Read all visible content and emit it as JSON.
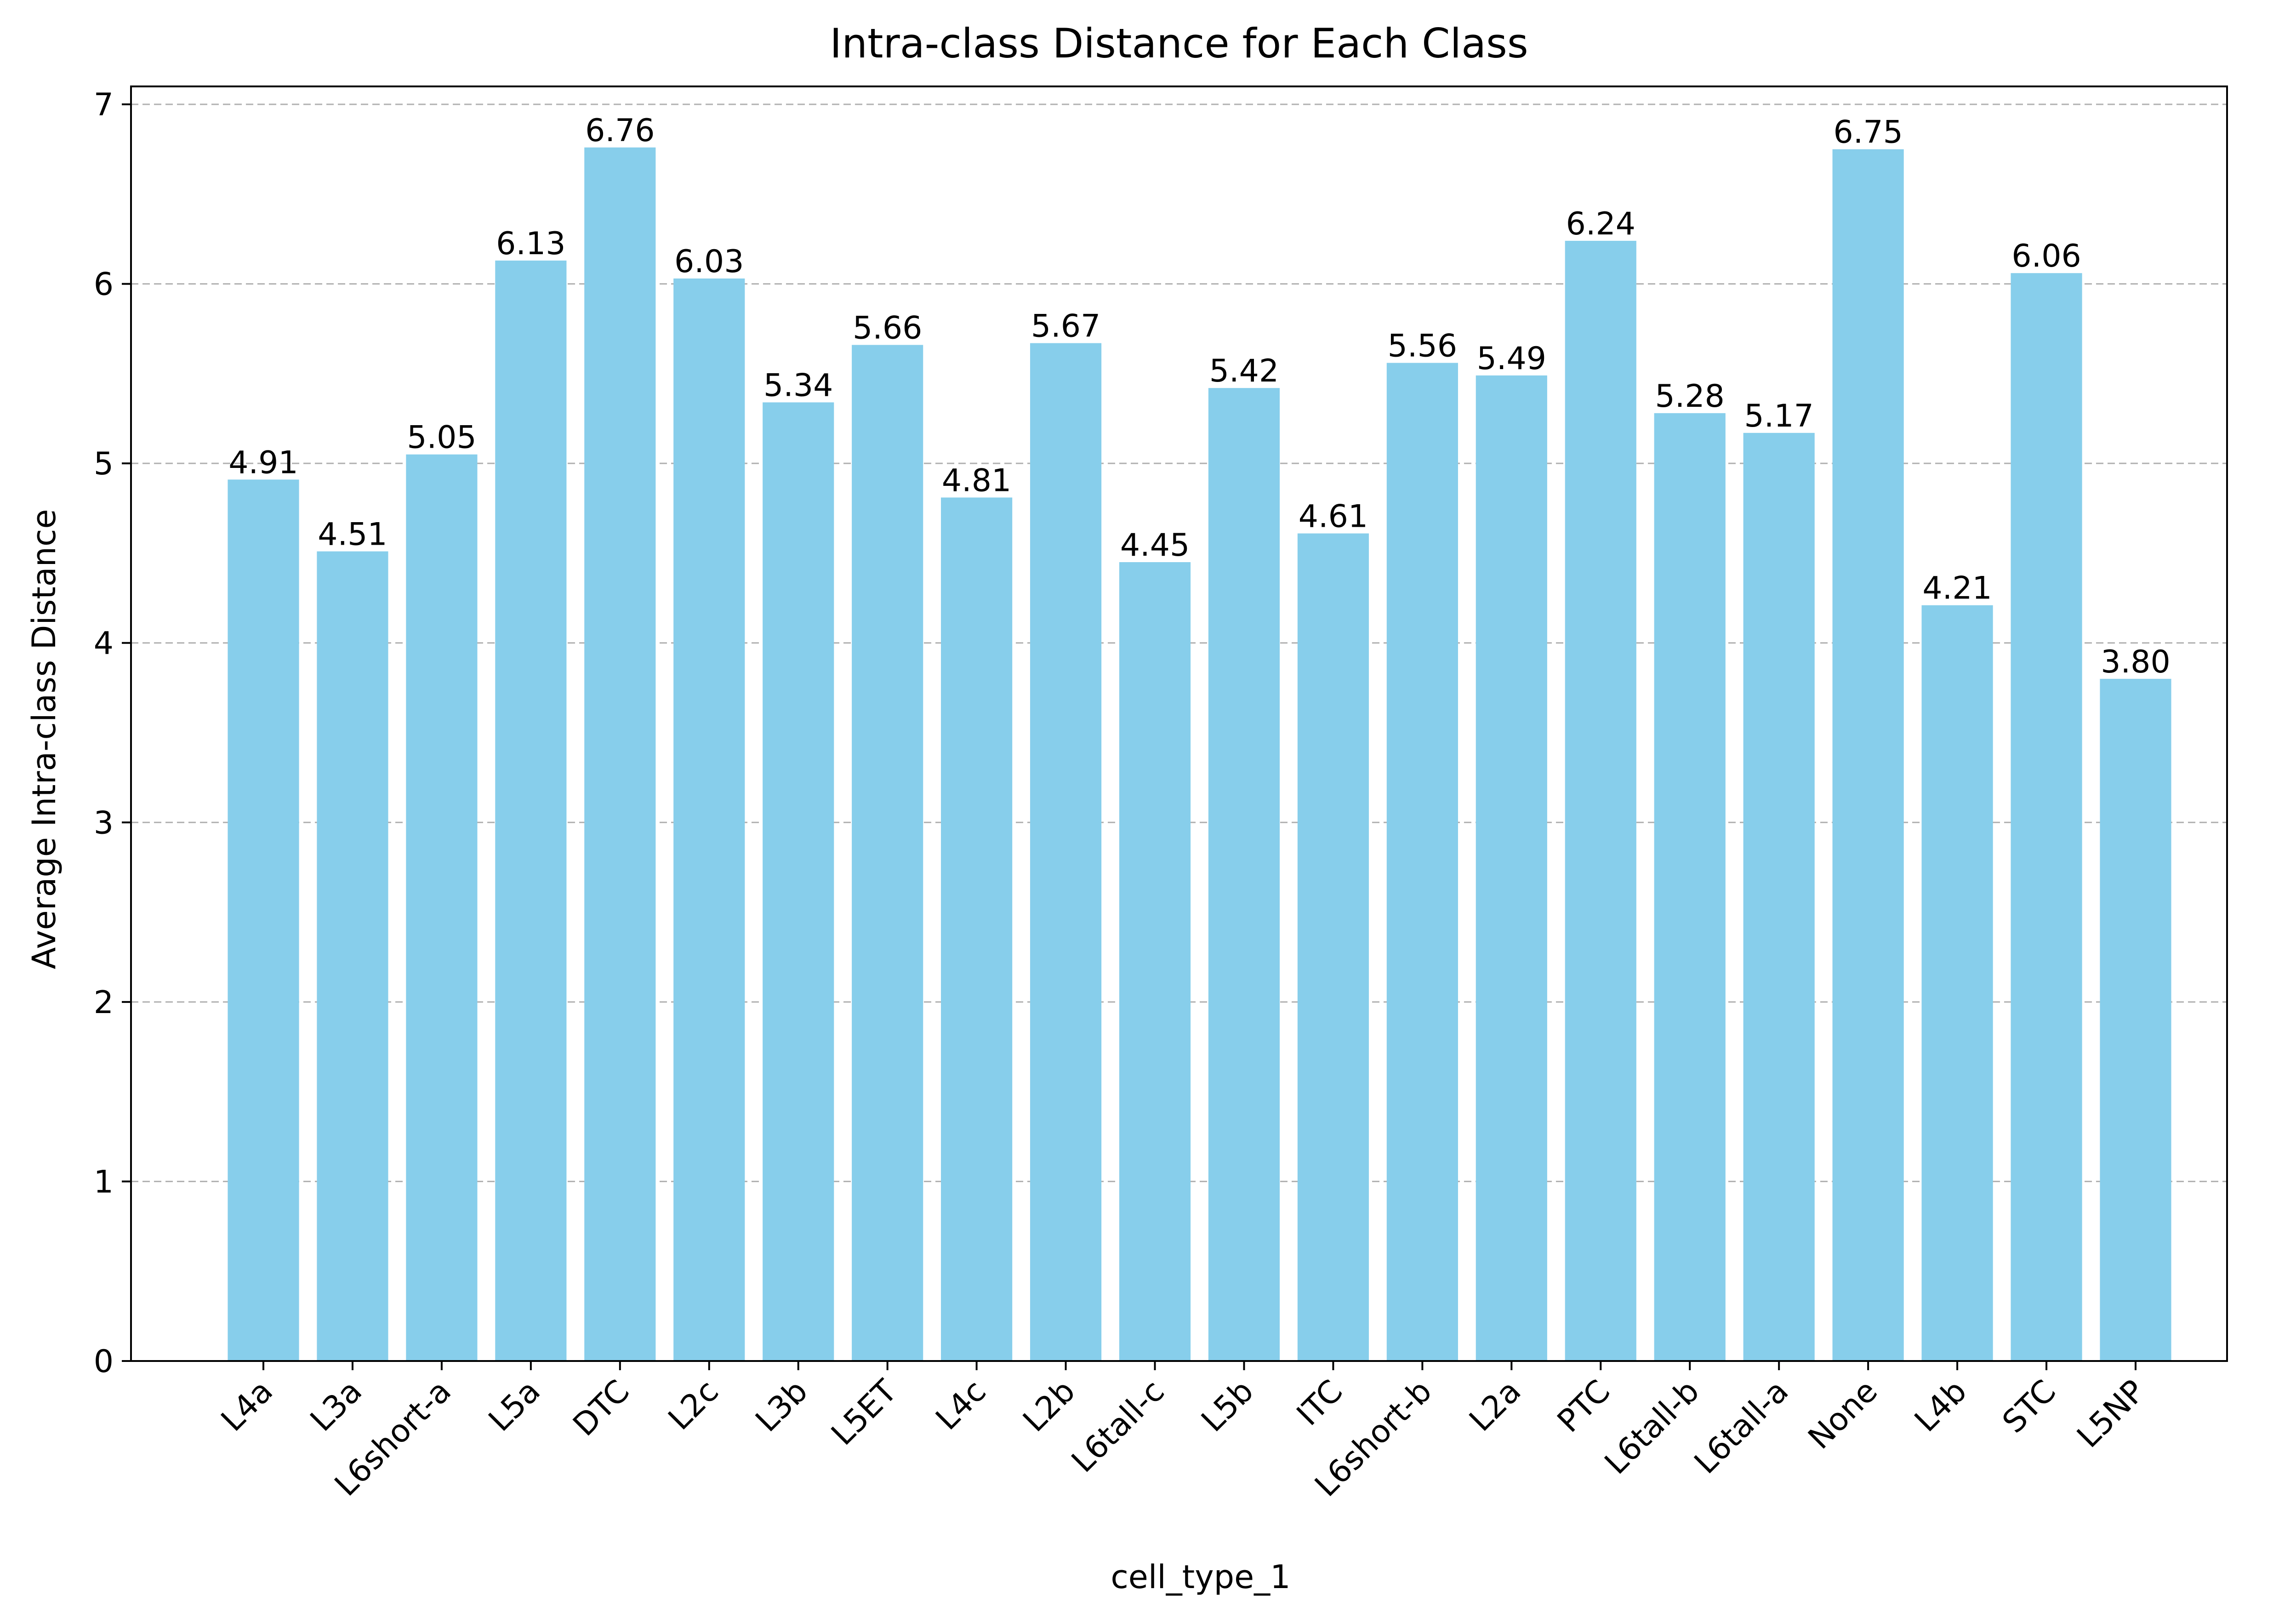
{
  "chart_data": {
    "type": "bar",
    "title": "Intra-class Distance for Each Class",
    "xlabel": "cell_type_1",
    "ylabel": "Average Intra-class Distance",
    "categories": [
      "L4a",
      "L3a",
      "L6short-a",
      "L5a",
      "DTC",
      "L2c",
      "L3b",
      "L5ET",
      "L4c",
      "L2b",
      "L6tall-c",
      "L5b",
      "ITC",
      "L6short-b",
      "L2a",
      "PTC",
      "L6tall-b",
      "L6tall-a",
      "None",
      "L4b",
      "STC",
      "L5NP"
    ],
    "values": [
      4.91,
      4.51,
      5.05,
      6.13,
      6.76,
      6.03,
      5.34,
      5.66,
      4.81,
      5.67,
      4.45,
      5.42,
      4.61,
      5.56,
      5.49,
      6.24,
      5.28,
      5.17,
      6.75,
      4.21,
      6.06,
      3.8
    ],
    "value_labels": [
      "4.91",
      "4.51",
      "5.05",
      "6.13",
      "6.76",
      "6.03",
      "5.34",
      "5.66",
      "4.81",
      "5.67",
      "4.45",
      "5.42",
      "4.61",
      "5.56",
      "5.49",
      "6.24",
      "5.28",
      "5.17",
      "6.75",
      "4.21",
      "6.06",
      "3.80"
    ],
    "ylim": [
      0,
      7.1
    ],
    "yticks": [
      0,
      1,
      2,
      3,
      4,
      5,
      6,
      7
    ],
    "grid": "y-dashed",
    "bar_color": "#87CEEB"
  }
}
